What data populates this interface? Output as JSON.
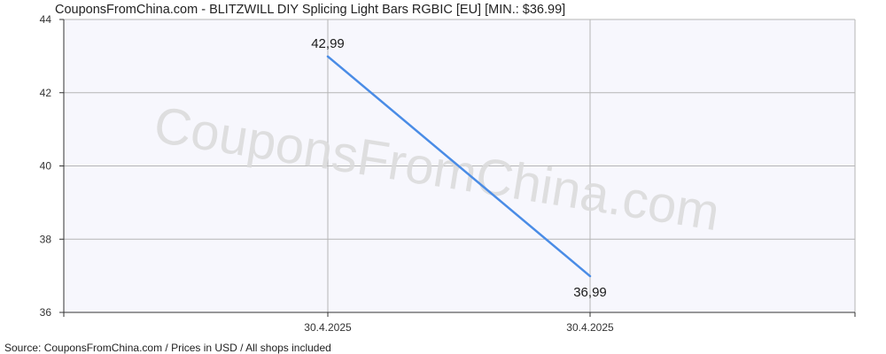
{
  "chart_data": {
    "type": "line",
    "title": "CouponsFromChina.com - BLITZWILL DIY Splicing Light Bars RGBIC [EU] [MIN.: $36.99]",
    "source": "Source: CouponsFromChina.com / Prices in USD / All shops included",
    "watermark": "CouponsFromChina.com",
    "x_tick_labels": [
      "30.4.2025",
      "30.4.2025"
    ],
    "y_ticks": [
      36,
      38,
      40,
      42,
      44
    ],
    "ylim": [
      36,
      44
    ],
    "grid": true,
    "series": [
      {
        "values": [
          42.99,
          36.99
        ],
        "labels": [
          "42,99",
          "36,99"
        ],
        "color": "#4a8ce6"
      }
    ]
  },
  "colors": {
    "plot_background": "#f7f7fd",
    "grid": "#b5b5b5",
    "axis": "#333333",
    "line": "#4a8ce6"
  }
}
